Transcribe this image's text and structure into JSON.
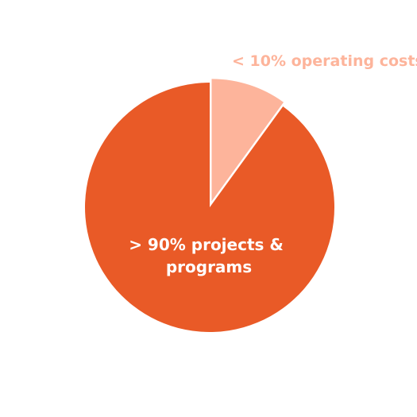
{
  "chart_data": {
    "type": "pie",
    "slices": [
      {
        "label_lines": [
          "> 90% projects &",
          "programs"
        ],
        "value": 90,
        "color": "#e95a27"
      },
      {
        "label_lines": [
          "< 10% operating costs"
        ],
        "value": 10,
        "color": "#fdb49b"
      }
    ],
    "label_colors": {
      "inside": "#ffffff",
      "outside": "#fdb49b"
    },
    "background": "#ffffff"
  }
}
